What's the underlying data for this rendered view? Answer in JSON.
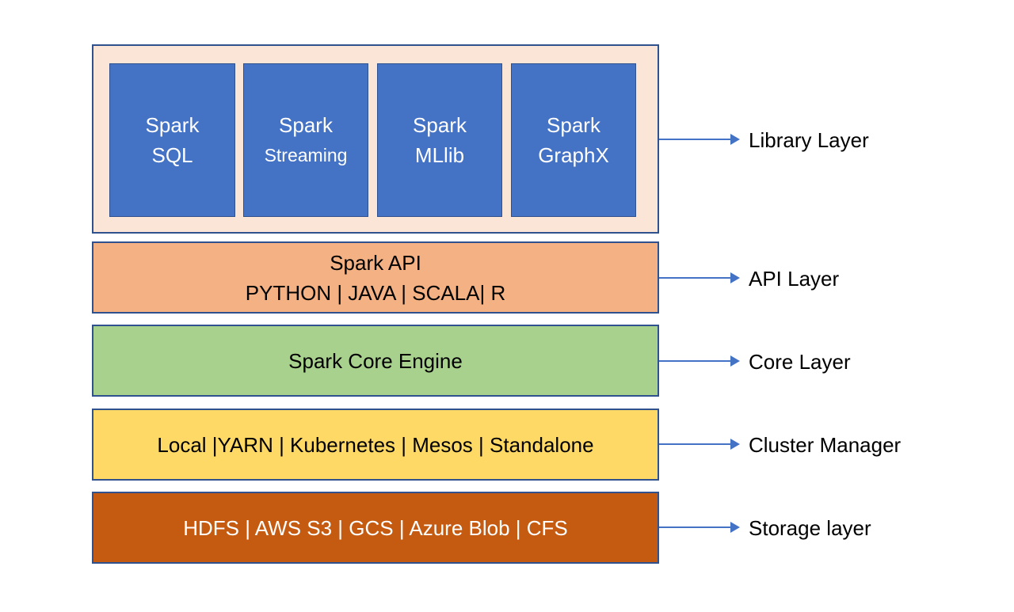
{
  "library_layer": {
    "modules": [
      {
        "line1": "Spark",
        "line2": "SQL"
      },
      {
        "line1": "Spark",
        "line2": "Streaming"
      },
      {
        "line1": "Spark",
        "line2": "MLlib"
      },
      {
        "line1": "Spark",
        "line2": "GraphX"
      }
    ]
  },
  "api_layer": {
    "line1": "Spark API",
    "line2": "PYTHON | JAVA | SCALA| R"
  },
  "core_layer": {
    "text": "Spark Core Engine"
  },
  "cluster_layer": {
    "text": "Local |YARN | Kubernetes | Mesos | Standalone"
  },
  "storage_layer": {
    "text": "HDFS | AWS S3 | GCS | Azure Blob | CFS"
  },
  "labels": {
    "library": "Library Layer",
    "api": "API Layer",
    "core": "Core Layer",
    "cluster": "Cluster Manager",
    "storage": "Storage layer"
  },
  "colors": {
    "library_bg": "#FBE5D6",
    "module": "#4472C4",
    "api": "#F4B183",
    "core": "#A9D18E",
    "cluster": "#FFD966",
    "storage": "#C55A11",
    "border": "#2F528F"
  }
}
